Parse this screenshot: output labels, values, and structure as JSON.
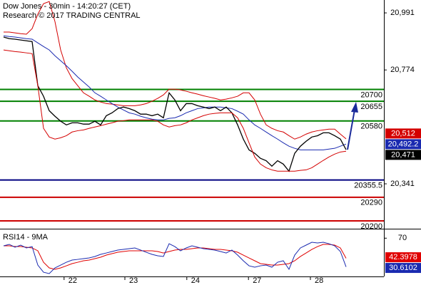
{
  "chart_data": [
    {
      "type": "line",
      "title": "Dow Jones - 30min - 14:20:27 (CET)",
      "subtitle": "Research © 2017 TRADING CENTRAL",
      "x": [
        0,
        1,
        2,
        3,
        4,
        5,
        6,
        7,
        8,
        9,
        10,
        11,
        12,
        13,
        14,
        15,
        16,
        17,
        18,
        19,
        20,
        21,
        22,
        23,
        24,
        25,
        26,
        27,
        28,
        29,
        30,
        31,
        32,
        33,
        34,
        35,
        36,
        37,
        38,
        39,
        40,
        41,
        42,
        43,
        44,
        45,
        46,
        47,
        48,
        49,
        50,
        51,
        52,
        53,
        54,
        55,
        56,
        57,
        58,
        59,
        60
      ],
      "xlim": [
        -0.625,
        66.625
      ],
      "ylim": [
        20173,
        21040
      ],
      "yticks": [
        {
          "value": 20991,
          "label": "20,991"
        },
        {
          "value": 20774,
          "label": "20,774"
        },
        {
          "value": 20341,
          "label": "20,341"
        }
      ],
      "levels": [
        {
          "value": 20700,
          "color": "#008000"
        },
        {
          "value": 20655,
          "color": "#008000"
        },
        {
          "value": 20580,
          "color": "#008000"
        },
        {
          "value": 20355.5,
          "color": "#000080"
        },
        {
          "value": 20290,
          "color": "#cc0000"
        },
        {
          "value": 20200,
          "color": "#cc0000"
        }
      ],
      "series": [
        {
          "color": "#d40000",
          "last_value_badge": true,
          "values": [
            20918,
            20918,
            20915,
            20912,
            20910,
            20931,
            20986,
            21026,
            21034,
            20958,
            20850,
            20782,
            20741,
            20714,
            20687,
            20674,
            20660,
            20652,
            20646,
            20644,
            20641,
            20638,
            20638,
            20638,
            20641,
            20646,
            20655,
            20666,
            20679,
            20701,
            20701,
            20698,
            20693,
            20687,
            20682,
            20676,
            20671,
            20666,
            20660,
            20663,
            20668,
            20674,
            20687,
            20687,
            20660,
            20606,
            20565,
            20552,
            20543,
            20538,
            20524,
            20511,
            20519,
            20530,
            20538,
            20543,
            20546,
            20549,
            20549,
            20530,
            20512
          ],
          "value_labels": [
            null,
            null,
            null,
            null,
            null,
            null,
            null,
            null,
            null,
            null,
            null,
            null,
            null,
            null,
            null,
            null,
            null,
            null,
            null,
            null,
            null,
            null,
            null,
            null,
            null,
            null,
            null,
            null,
            null,
            null,
            null,
            null,
            null,
            null,
            null,
            null,
            null,
            null,
            null,
            null,
            null,
            null,
            null,
            null,
            null,
            null,
            null,
            null,
            null,
            null,
            null,
            null,
            null,
            null,
            null,
            null,
            null,
            null,
            null,
            null,
            "20,512"
          ]
        },
        {
          "color": "#1a2ab0",
          "last_value_badge": true,
          "values": [
            20904,
            20901,
            20899,
            20896,
            20893,
            20891,
            20877,
            20863,
            20850,
            20828,
            20809,
            20790,
            20769,
            20747,
            20728,
            20709,
            20687,
            20674,
            20660,
            20646,
            20633,
            20622,
            20611,
            20606,
            20598,
            20592,
            20587,
            20584,
            20584,
            20590,
            20592,
            20600,
            20611,
            20619,
            20627,
            20630,
            20633,
            20633,
            20633,
            20630,
            20627,
            20617,
            20606,
            20584,
            20565,
            20552,
            20538,
            20524,
            20511,
            20497,
            20484,
            20476,
            20470,
            20470,
            20470,
            20470,
            20470,
            20473,
            20476,
            20484,
            20492.2
          ],
          "value_labels": [
            null,
            null,
            null,
            null,
            null,
            null,
            null,
            null,
            null,
            null,
            null,
            null,
            null,
            null,
            null,
            null,
            null,
            null,
            null,
            null,
            null,
            null,
            null,
            null,
            null,
            null,
            null,
            null,
            null,
            null,
            null,
            null,
            null,
            null,
            null,
            null,
            null,
            null,
            null,
            null,
            null,
            null,
            null,
            null,
            null,
            null,
            null,
            null,
            null,
            null,
            null,
            null,
            null,
            null,
            null,
            null,
            null,
            null,
            null,
            null,
            "20,492.2"
          ]
        },
        {
          "color": "#000000",
          "last_value_badge": true,
          "values": [
            20899,
            20893,
            20891,
            20888,
            20885,
            20882,
            20714,
            20674,
            20619,
            20598,
            20579,
            20565,
            20573,
            20573,
            20568,
            20568,
            20579,
            20565,
            20600,
            20611,
            20627,
            20633,
            20627,
            20619,
            20606,
            20606,
            20600,
            20606,
            20592,
            20687,
            20660,
            20619,
            20646,
            20646,
            20638,
            20633,
            20627,
            20633,
            20619,
            20633,
            20611,
            20565,
            20511,
            20470,
            20457,
            20438,
            20429,
            20408,
            20429,
            20416,
            20389,
            20457,
            20484,
            20503,
            20519,
            20524,
            20535,
            20535,
            20524,
            20511,
            20471
          ],
          "value_labels": [
            null,
            null,
            null,
            null,
            null,
            null,
            null,
            null,
            null,
            null,
            null,
            null,
            null,
            null,
            null,
            null,
            null,
            null,
            null,
            null,
            null,
            null,
            null,
            null,
            null,
            null,
            null,
            null,
            null,
            null,
            null,
            null,
            null,
            null,
            null,
            null,
            null,
            null,
            null,
            null,
            null,
            null,
            null,
            null,
            null,
            null,
            null,
            null,
            null,
            null,
            null,
            null,
            null,
            null,
            null,
            null,
            null,
            null,
            null,
            null,
            "20,471"
          ]
        },
        {
          "color": "#d40000",
          "last_value_badge": false,
          "values": [
            20850,
            20847,
            20844,
            20842,
            20839,
            20836,
            20714,
            20552,
            20519,
            20511,
            20516,
            20524,
            20538,
            20543,
            20546,
            20552,
            20557,
            20562,
            20568,
            20573,
            20579,
            20581,
            20584,
            20584,
            20584,
            20584,
            20584,
            20579,
            20565,
            20557,
            20562,
            20565,
            20573,
            20584,
            20592,
            20600,
            20606,
            20609,
            20611,
            20611,
            20611,
            20592,
            20552,
            20497,
            20443,
            20416,
            20402,
            20394,
            20389,
            20389,
            20389,
            20389,
            20392,
            20394,
            20402,
            20416,
            20430,
            20443,
            20454,
            20462,
            20465
          ]
        }
      ]
    },
    {
      "type": "line",
      "title": "RSI14 - 9MA",
      "x": [
        0,
        1,
        2,
        3,
        4,
        5,
        6,
        7,
        8,
        9,
        10,
        11,
        12,
        13,
        14,
        15,
        16,
        17,
        18,
        19,
        20,
        21,
        22,
        23,
        24,
        25,
        26,
        27,
        28,
        29,
        30,
        31,
        32,
        33,
        34,
        35,
        36,
        37,
        38,
        39,
        40,
        41,
        42,
        43,
        44,
        45,
        46,
        47,
        48,
        49,
        50,
        51,
        52,
        53,
        54,
        55,
        56,
        57,
        58,
        59,
        60
      ],
      "xlim": [
        -0.625,
        66.625
      ],
      "xticks": [
        {
          "value": 10.6,
          "label": "22"
        },
        {
          "value": 21.25,
          "label": "23"
        },
        {
          "value": 32.1,
          "label": "24"
        },
        {
          "value": 42.9,
          "label": "27"
        },
        {
          "value": 53.75,
          "label": "28"
        }
      ],
      "ylim": [
        17.5,
        82
      ],
      "yticks": [
        70
      ],
      "series": [
        {
          "color": "#e00000",
          "last_value_badge": true,
          "values": [
            59.5,
            59.5,
            58.5,
            58.5,
            57.6,
            56.6,
            52.7,
            37.0,
            29.2,
            27.3,
            29.2,
            32.1,
            35.1,
            37.0,
            39.0,
            40.0,
            41.9,
            43.9,
            46.8,
            48.8,
            50.7,
            51.7,
            52.7,
            52.7,
            52.7,
            52.7,
            52.7,
            51.7,
            49.7,
            51.7,
            53.7,
            54.6,
            54.6,
            55.6,
            56.6,
            56.6,
            55.6,
            54.6,
            54.6,
            53.7,
            52.7,
            50.7,
            46.8,
            42.9,
            39.0,
            35.1,
            34.1,
            33.1,
            33.1,
            34.1,
            35.1,
            39.0,
            44.9,
            49.7,
            54.6,
            58.5,
            61.5,
            61.5,
            60.5,
            56.6,
            42.3978
          ]
        },
        {
          "color": "#1a2ab0",
          "last_value_badge": true,
          "values": [
            59.5,
            61.5,
            57.6,
            60.5,
            56.6,
            58.5,
            33.1,
            23.3,
            21.4,
            29.2,
            33.1,
            37.0,
            40.0,
            40.9,
            41.9,
            42.9,
            44.9,
            47.8,
            49.7,
            51.7,
            53.7,
            54.6,
            55.6,
            56.6,
            53.7,
            50.7,
            47.8,
            45.8,
            44.9,
            62.4,
            58.5,
            52.7,
            56.6,
            59.5,
            57.6,
            55.6,
            54.6,
            53.7,
            51.7,
            49.7,
            53.7,
            46.8,
            39.0,
            32.1,
            30.2,
            32.1,
            33.1,
            30.2,
            37.0,
            39.0,
            27.3,
            46.8,
            56.6,
            60.5,
            64.4,
            63.4,
            64.4,
            62.4,
            59.5,
            51.7,
            30.6102
          ]
        }
      ]
    }
  ]
}
